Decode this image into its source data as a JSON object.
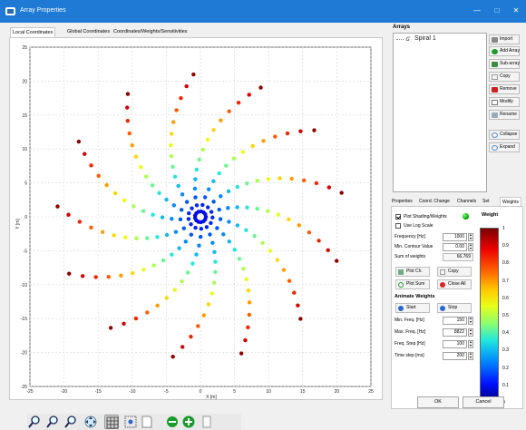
{
  "window": {
    "title": "Array Properties",
    "minimize_icon": "minimize-icon",
    "maximize_icon": "maximize-icon",
    "close_icon": "close-icon"
  },
  "tabs": [
    {
      "label": "Local Coordinates"
    },
    {
      "label": "Global Coordinates"
    },
    {
      "label": "Coordinates/Weights/Sensitivities"
    }
  ],
  "plot": {
    "xlabel": "X [m]",
    "ylabel": "Y [m]",
    "xlim": [
      -25,
      25
    ],
    "ylim": [
      -25,
      25
    ],
    "xticks": [
      "-25",
      "-20",
      "-15",
      "-10",
      "-5",
      "0",
      "5",
      "10",
      "15",
      "20",
      "25"
    ],
    "yticks": [
      "25",
      "20",
      "15",
      "10",
      "5",
      "0",
      "-5",
      "-10",
      "-15",
      "-20",
      "-25"
    ]
  },
  "chart_data": {
    "type": "scatter",
    "xlabel": "X [m]",
    "ylabel": "Y [m]",
    "xlim": [
      -25,
      25
    ],
    "ylim": [
      -25,
      25
    ],
    "grid": true,
    "description_units": "points are array element positions; color encodes weight (0..1)",
    "arms": 13,
    "elements_per_arm": 15,
    "r_min": 0.8,
    "r_max": 21,
    "turns": 0.95
  },
  "toolbar": {
    "icons": [
      "zoom-in-icon",
      "zoom-out-icon",
      "zoom-reset-icon",
      "pan-icon",
      "grid-icon",
      "select-icon",
      "export-icon",
      "remove-icon",
      "add-icon",
      "page-icon"
    ]
  },
  "arrays": {
    "label": "Arrays",
    "items": [
      {
        "label": "Spiral 1"
      }
    ]
  },
  "side_buttons": [
    {
      "label": "Import",
      "icon": "import-icon"
    },
    {
      "label": "Add Array",
      "icon": "add-array-icon"
    },
    {
      "label": "Sub-array",
      "icon": "sub-array-icon"
    },
    {
      "label": "Copy",
      "icon": "copy-icon"
    },
    {
      "label": "Remove",
      "icon": "remove-icon"
    },
    {
      "label": "Modify",
      "icon": "modify-icon"
    },
    {
      "label": "Rename",
      "icon": "rename-icon"
    },
    {
      "label": "Collapse",
      "icon": "collapse-icon"
    },
    {
      "label": "Expand",
      "icon": "expand-icon"
    }
  ],
  "prop_tabs": [
    {
      "label": "Properties"
    },
    {
      "label": "Coord. Change"
    },
    {
      "label": "Channels"
    },
    {
      "label": "Set"
    },
    {
      "label": "Weights"
    }
  ],
  "weights": {
    "plot_shading": "Plot Shading/Weights",
    "use_log": "Use Log Scale",
    "freq_label": "Frequency [Hz]",
    "freq_value": "1000",
    "min_contour_label": "Min. Contour Value",
    "min_contour_value": "0.00",
    "sum_label": "Sum of weights",
    "sum_value": "66.769",
    "plot_ch": "Plot Ch.",
    "copy": "Copy",
    "plot_sum": "Plot Sum",
    "close_all": "Close All",
    "animate_title": "Animate Weights",
    "start": "Start",
    "stop": "Stop",
    "min_freq_label": "Min. Freq. [Hz]",
    "min_freq_value": "150",
    "max_freq_label": "Max. Freq. [Hz]",
    "max_freq_value": "8822",
    "freq_step_label": "Freq. Step [Hz]",
    "freq_step_value": "100",
    "time_step_label": "Time step [ms]",
    "time_step_value": "200",
    "colorbar_title": "Weight",
    "colorbar_ticks": [
      "1",
      "0.9",
      "0.8",
      "0.7",
      "0.6",
      "0.5",
      "0.4",
      "0.3",
      "0.2",
      "0.1",
      "0"
    ]
  },
  "dialog": {
    "ok": "OK",
    "cancel": "Cancel"
  },
  "colors": {
    "titlebar": "#1e7ad4",
    "dot_low": "#0000ff",
    "dot_high": "#8b0000"
  }
}
